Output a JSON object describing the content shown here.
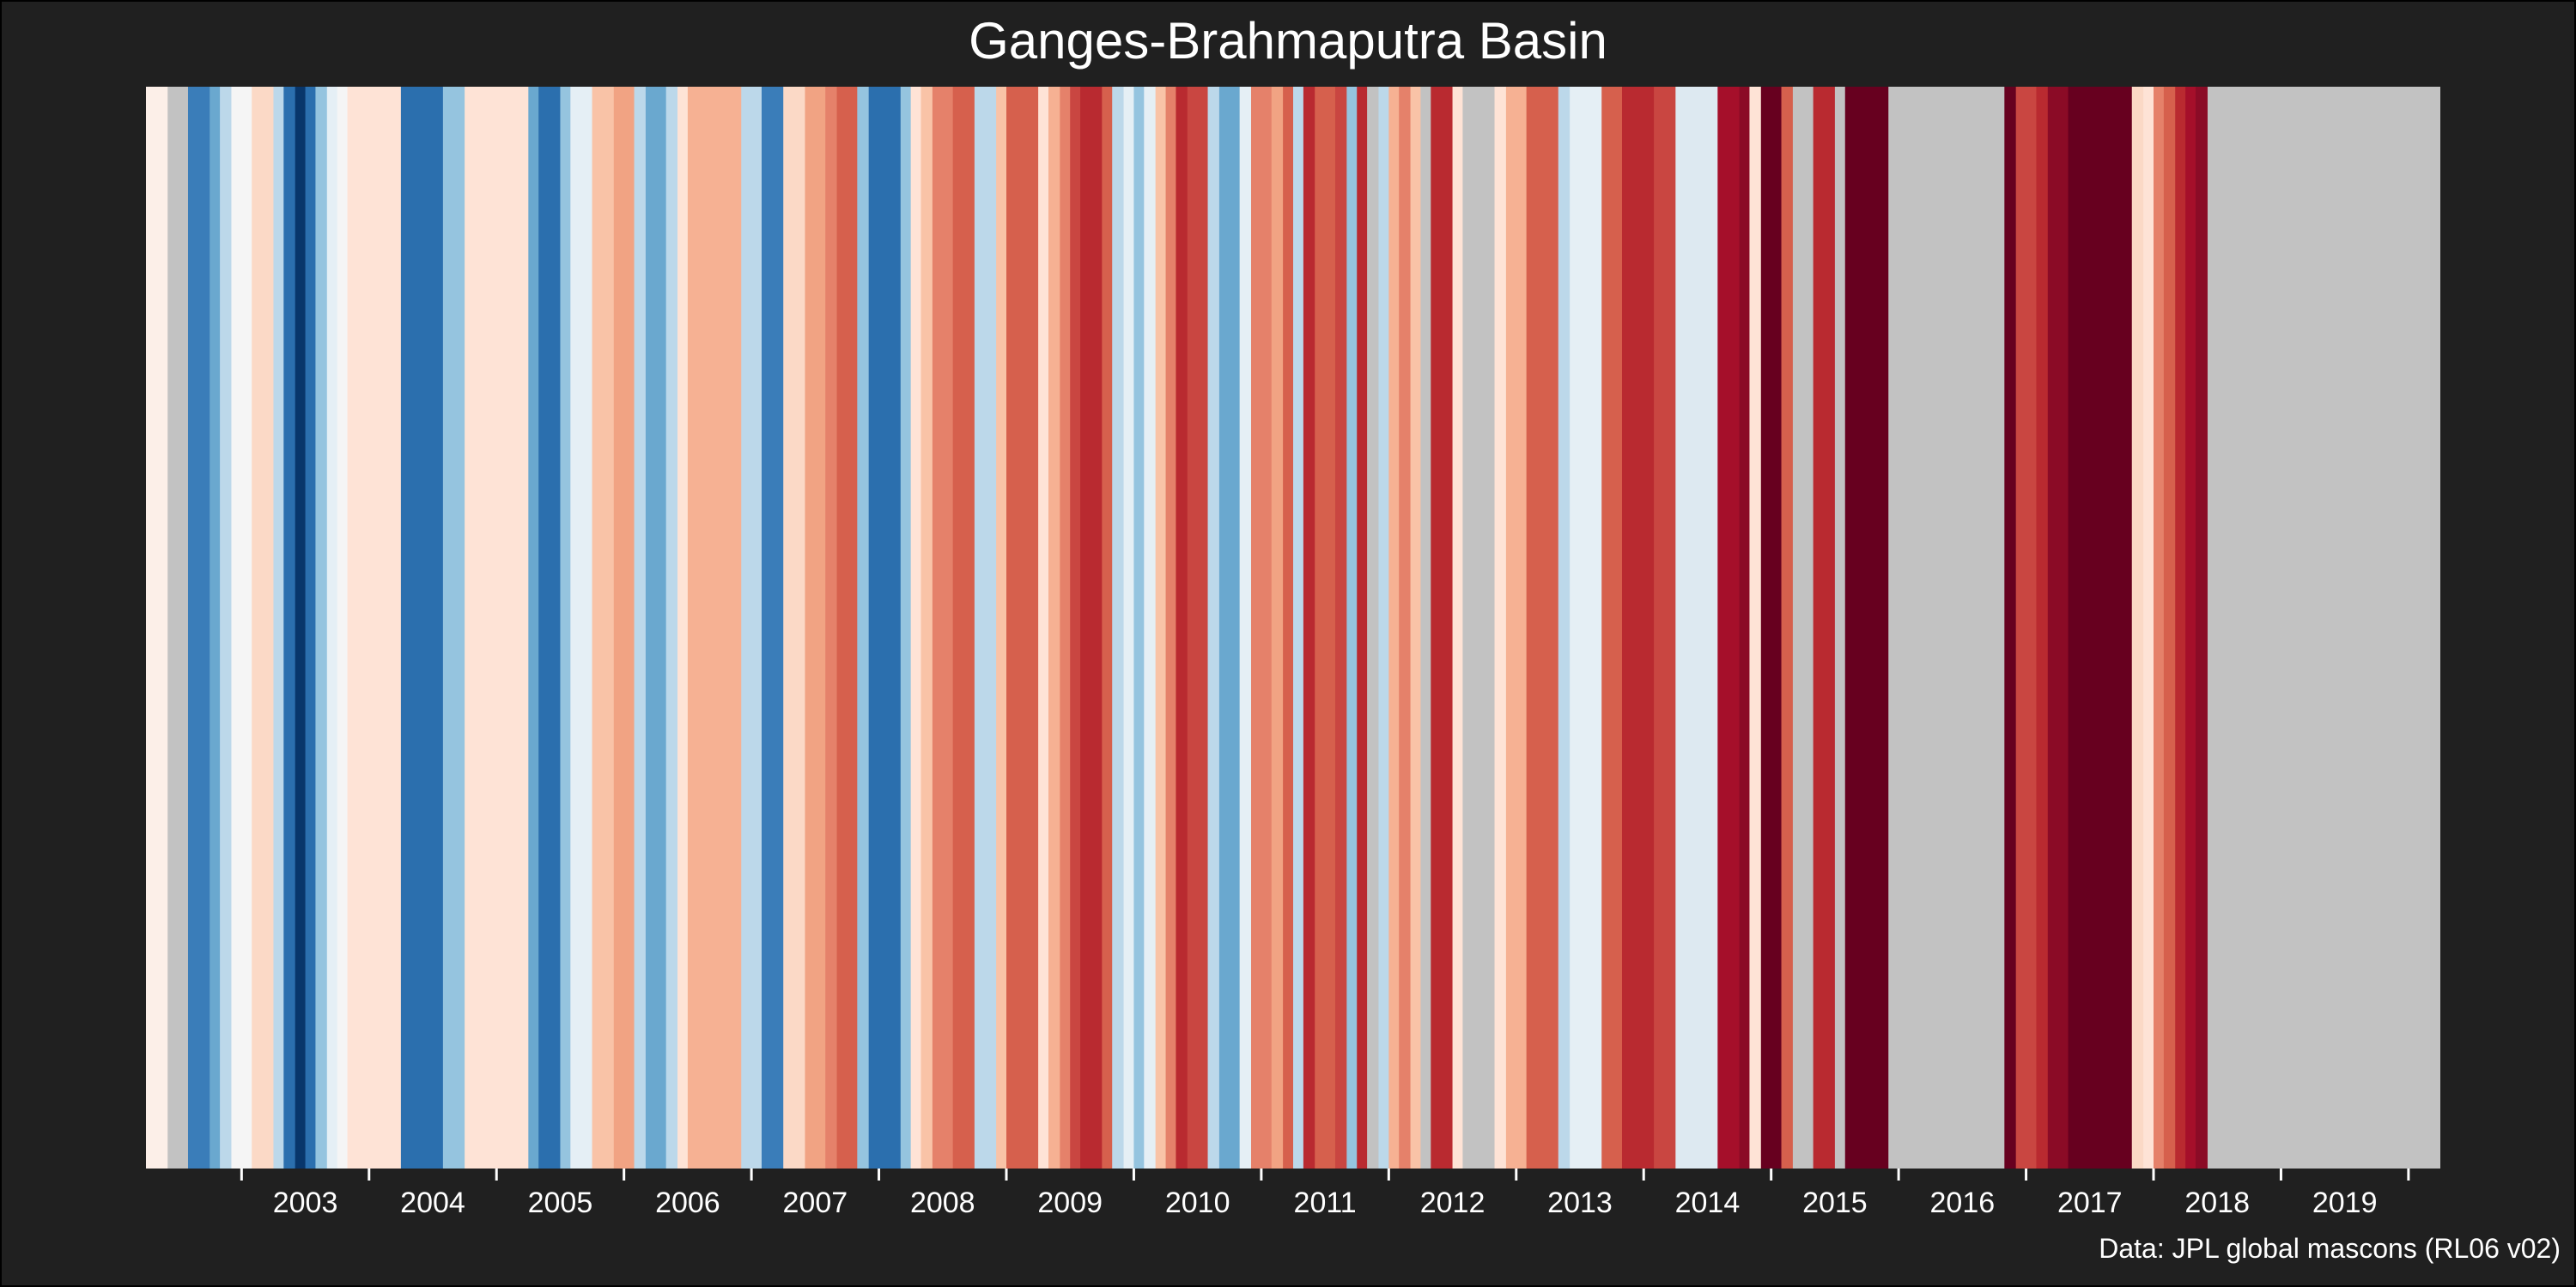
{
  "chart_data": {
    "type": "heatmap",
    "title": "Ganges-Brahmaputra Basin",
    "caption": "Data: JPL global mascons (RL06 v02)",
    "xlabel": "",
    "ylabel": "",
    "x_range": [
      2002.25,
      2020.25
    ],
    "tick_labels": [
      "2003",
      "2004",
      "2005",
      "2006",
      "2007",
      "2008",
      "2009",
      "2010",
      "2011",
      "2012",
      "2013",
      "2014",
      "2015",
      "2016",
      "2017",
      "2018",
      "2019"
    ],
    "missing_color": "#c2c2c2",
    "stripes": [
      {
        "start": 2002.25,
        "end": 2002.42,
        "color": "#fcefe8"
      },
      {
        "start": 2002.42,
        "end": 2002.58,
        "color": "#c2c2c2"
      },
      {
        "start": 2002.58,
        "end": 2002.75,
        "color": "#3a7db9"
      },
      {
        "start": 2002.75,
        "end": 2002.83,
        "color": "#6aa8cf"
      },
      {
        "start": 2002.83,
        "end": 2002.92,
        "color": "#bcd8ea"
      },
      {
        "start": 2002.92,
        "end": 2003.08,
        "color": "#f5f5f5"
      },
      {
        "start": 2003.08,
        "end": 2003.25,
        "color": "#fbd9c6"
      },
      {
        "start": 2003.25,
        "end": 2003.33,
        "color": "#bcd8ea"
      },
      {
        "start": 2003.33,
        "end": 2003.42,
        "color": "#2b6fae"
      },
      {
        "start": 2003.42,
        "end": 2003.5,
        "color": "#08366b"
      },
      {
        "start": 2003.5,
        "end": 2003.58,
        "color": "#2b6fae"
      },
      {
        "start": 2003.58,
        "end": 2003.67,
        "color": "#95c4df"
      },
      {
        "start": 2003.67,
        "end": 2003.75,
        "color": "#e5eff5"
      },
      {
        "start": 2003.75,
        "end": 2003.83,
        "color": "#f5f5f5"
      },
      {
        "start": 2003.83,
        "end": 2004.25,
        "color": "#fee3d6"
      },
      {
        "start": 2004.25,
        "end": 2004.58,
        "color": "#2b6fae"
      },
      {
        "start": 2004.58,
        "end": 2004.75,
        "color": "#95c4df"
      },
      {
        "start": 2004.75,
        "end": 2005.25,
        "color": "#fee3d6"
      },
      {
        "start": 2005.25,
        "end": 2005.33,
        "color": "#6aa8cf"
      },
      {
        "start": 2005.33,
        "end": 2005.5,
        "color": "#2b6fae"
      },
      {
        "start": 2005.5,
        "end": 2005.58,
        "color": "#95c4df"
      },
      {
        "start": 2005.58,
        "end": 2005.75,
        "color": "#e5eff5"
      },
      {
        "start": 2005.75,
        "end": 2005.92,
        "color": "#f9c3a7"
      },
      {
        "start": 2005.92,
        "end": 2006.08,
        "color": "#f1a383"
      },
      {
        "start": 2006.08,
        "end": 2006.17,
        "color": "#bcd8ea"
      },
      {
        "start": 2006.17,
        "end": 2006.33,
        "color": "#6aa8cf"
      },
      {
        "start": 2006.33,
        "end": 2006.42,
        "color": "#bcd8ea"
      },
      {
        "start": 2006.42,
        "end": 2006.5,
        "color": "#fee3d6"
      },
      {
        "start": 2006.5,
        "end": 2006.92,
        "color": "#f6b193"
      },
      {
        "start": 2006.92,
        "end": 2007.08,
        "color": "#bcd8ea"
      },
      {
        "start": 2007.08,
        "end": 2007.25,
        "color": "#3a7db9"
      },
      {
        "start": 2007.25,
        "end": 2007.42,
        "color": "#fbd9c6"
      },
      {
        "start": 2007.42,
        "end": 2007.58,
        "color": "#f1a383"
      },
      {
        "start": 2007.58,
        "end": 2007.67,
        "color": "#e5816a"
      },
      {
        "start": 2007.67,
        "end": 2007.83,
        "color": "#d6604d"
      },
      {
        "start": 2007.83,
        "end": 2007.92,
        "color": "#95c4df"
      },
      {
        "start": 2007.92,
        "end": 2008.17,
        "color": "#2b6fae"
      },
      {
        "start": 2008.17,
        "end": 2008.25,
        "color": "#95c4df"
      },
      {
        "start": 2008.25,
        "end": 2008.33,
        "color": "#fee3d6"
      },
      {
        "start": 2008.33,
        "end": 2008.42,
        "color": "#f9c3a7"
      },
      {
        "start": 2008.42,
        "end": 2008.58,
        "color": "#e5816a"
      },
      {
        "start": 2008.58,
        "end": 2008.75,
        "color": "#d6604d"
      },
      {
        "start": 2008.75,
        "end": 2008.92,
        "color": "#bcd8ea"
      },
      {
        "start": 2008.92,
        "end": 2009.0,
        "color": "#f9c3a7"
      },
      {
        "start": 2009.0,
        "end": 2009.25,
        "color": "#d6604d"
      },
      {
        "start": 2009.25,
        "end": 2009.33,
        "color": "#fee3d6"
      },
      {
        "start": 2009.33,
        "end": 2009.42,
        "color": "#f6b193"
      },
      {
        "start": 2009.42,
        "end": 2009.5,
        "color": "#e5816a"
      },
      {
        "start": 2009.5,
        "end": 2009.58,
        "color": "#c94641"
      },
      {
        "start": 2009.58,
        "end": 2009.75,
        "color": "#b92a30"
      },
      {
        "start": 2009.75,
        "end": 2009.83,
        "color": "#d6604d"
      },
      {
        "start": 2009.83,
        "end": 2009.92,
        "color": "#bcd8ea"
      },
      {
        "start": 2009.92,
        "end": 2010.0,
        "color": "#e5eff5"
      },
      {
        "start": 2010.0,
        "end": 2010.08,
        "color": "#95c4df"
      },
      {
        "start": 2010.08,
        "end": 2010.17,
        "color": "#e5eff5"
      },
      {
        "start": 2010.17,
        "end": 2010.25,
        "color": "#f9c3a7"
      },
      {
        "start": 2010.25,
        "end": 2010.33,
        "color": "#e5816a"
      },
      {
        "start": 2010.33,
        "end": 2010.42,
        "color": "#b92a30"
      },
      {
        "start": 2010.42,
        "end": 2010.58,
        "color": "#c94641"
      },
      {
        "start": 2010.58,
        "end": 2010.67,
        "color": "#bcd8ea"
      },
      {
        "start": 2010.67,
        "end": 2010.83,
        "color": "#6aa8cf"
      },
      {
        "start": 2010.83,
        "end": 2010.92,
        "color": "#e5eff5"
      },
      {
        "start": 2010.92,
        "end": 2011.08,
        "color": "#e5816a"
      },
      {
        "start": 2011.08,
        "end": 2011.17,
        "color": "#f1a383"
      },
      {
        "start": 2011.17,
        "end": 2011.25,
        "color": "#d6604d"
      },
      {
        "start": 2011.25,
        "end": 2011.33,
        "color": "#bcd8ea"
      },
      {
        "start": 2011.33,
        "end": 2011.42,
        "color": "#b92a30"
      },
      {
        "start": 2011.42,
        "end": 2011.58,
        "color": "#d6604d"
      },
      {
        "start": 2011.58,
        "end": 2011.67,
        "color": "#c94641"
      },
      {
        "start": 2011.67,
        "end": 2011.75,
        "color": "#95c4df"
      },
      {
        "start": 2011.75,
        "end": 2011.83,
        "color": "#b92a30"
      },
      {
        "start": 2011.83,
        "end": 2011.92,
        "color": "#c2c2c2"
      },
      {
        "start": 2011.92,
        "end": 2012.0,
        "color": "#bcd8ea"
      },
      {
        "start": 2012.0,
        "end": 2012.08,
        "color": "#f6b193"
      },
      {
        "start": 2012.08,
        "end": 2012.17,
        "color": "#e5816a"
      },
      {
        "start": 2012.17,
        "end": 2012.25,
        "color": "#f9c3a7"
      },
      {
        "start": 2012.25,
        "end": 2012.33,
        "color": "#c2c2c2"
      },
      {
        "start": 2012.33,
        "end": 2012.5,
        "color": "#b92a30"
      },
      {
        "start": 2012.5,
        "end": 2012.58,
        "color": "#fee3d6"
      },
      {
        "start": 2012.58,
        "end": 2012.83,
        "color": "#c2c2c2"
      },
      {
        "start": 2012.83,
        "end": 2012.92,
        "color": "#fee3d6"
      },
      {
        "start": 2012.92,
        "end": 2013.08,
        "color": "#f6b193"
      },
      {
        "start": 2013.08,
        "end": 2013.33,
        "color": "#d6604d"
      },
      {
        "start": 2013.33,
        "end": 2013.42,
        "color": "#bcd8ea"
      },
      {
        "start": 2013.42,
        "end": 2013.67,
        "color": "#e5eff5"
      },
      {
        "start": 2013.67,
        "end": 2013.83,
        "color": "#d6604d"
      },
      {
        "start": 2013.83,
        "end": 2014.08,
        "color": "#b92a30"
      },
      {
        "start": 2014.08,
        "end": 2014.25,
        "color": "#c94641"
      },
      {
        "start": 2014.25,
        "end": 2014.58,
        "color": "#dde9f1"
      },
      {
        "start": 2014.58,
        "end": 2014.75,
        "color": "#a50f2a"
      },
      {
        "start": 2014.75,
        "end": 2014.83,
        "color": "#8b0b26"
      },
      {
        "start": 2014.83,
        "end": 2014.92,
        "color": "#fee3d6"
      },
      {
        "start": 2014.92,
        "end": 2015.08,
        "color": "#67001f"
      },
      {
        "start": 2015.08,
        "end": 2015.17,
        "color": "#d6604d"
      },
      {
        "start": 2015.17,
        "end": 2015.33,
        "color": "#c2c2c2"
      },
      {
        "start": 2015.33,
        "end": 2015.5,
        "color": "#b92a30"
      },
      {
        "start": 2015.5,
        "end": 2015.58,
        "color": "#c2c2c2"
      },
      {
        "start": 2015.58,
        "end": 2015.92,
        "color": "#67001f"
      },
      {
        "start": 2015.92,
        "end": 2016.83,
        "color": "#c2c2c2"
      },
      {
        "start": 2016.83,
        "end": 2016.92,
        "color": "#67001f"
      },
      {
        "start": 2016.92,
        "end": 2017.08,
        "color": "#c94641"
      },
      {
        "start": 2017.08,
        "end": 2017.17,
        "color": "#b92a30"
      },
      {
        "start": 2017.17,
        "end": 2017.33,
        "color": "#8b0b26"
      },
      {
        "start": 2017.33,
        "end": 2017.83,
        "color": "#67001f"
      },
      {
        "start": 2017.83,
        "end": 2017.92,
        "color": "#fbd9c6"
      },
      {
        "start": 2017.92,
        "end": 2018.0,
        "color": "#fee3d6"
      },
      {
        "start": 2018.0,
        "end": 2018.08,
        "color": "#e5816a"
      },
      {
        "start": 2018.08,
        "end": 2018.17,
        "color": "#d6604d"
      },
      {
        "start": 2018.17,
        "end": 2018.25,
        "color": "#b92a30"
      },
      {
        "start": 2018.25,
        "end": 2018.33,
        "color": "#a50f2a"
      },
      {
        "start": 2018.33,
        "end": 2018.42,
        "color": "#8b0b26"
      }
    ]
  }
}
